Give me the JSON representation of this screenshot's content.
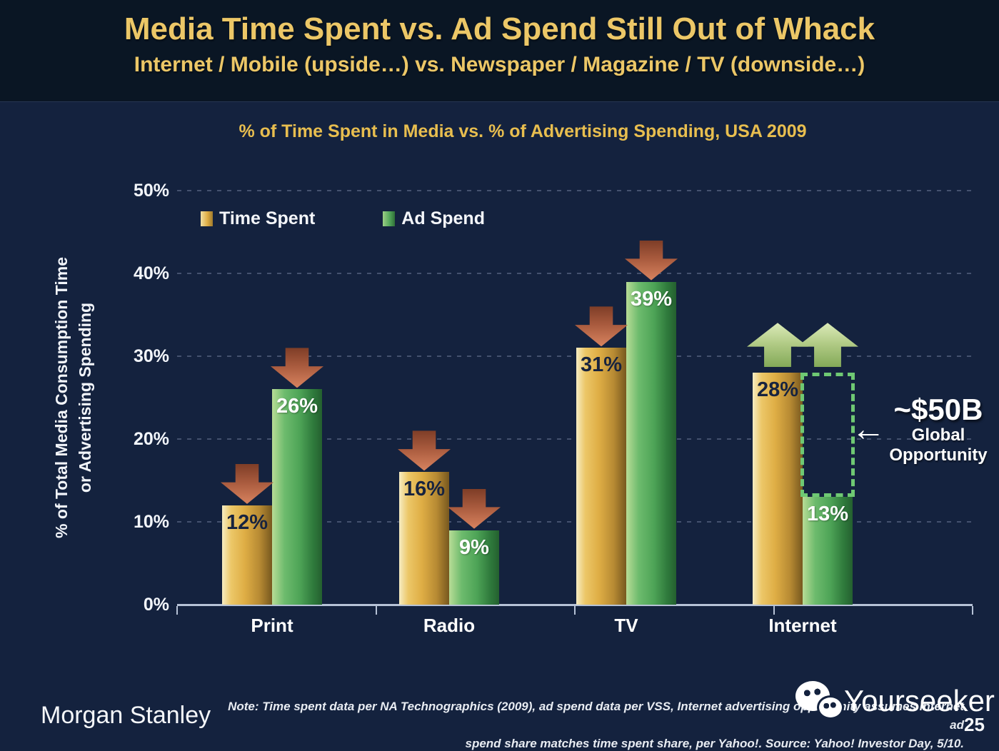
{
  "header": {
    "title": "Media Time Spent vs. Ad Spend Still Out of Whack",
    "subtitle": "Internet / Mobile (upside…) vs. Newspaper / Magazine / TV (downside…)"
  },
  "chart_data": {
    "type": "bar",
    "title": "% of Time Spent in Media vs. % of Advertising Spending, USA 2009",
    "ylabel_line1": "% of Total Media Consumption Time",
    "ylabel_line2": "or Advertising Spending",
    "categories": [
      "Print",
      "Radio",
      "TV",
      "Internet"
    ],
    "series": [
      {
        "name": "Time Spent",
        "color": "#DFAE45",
        "values": [
          12,
          16,
          31,
          28
        ]
      },
      {
        "name": "Ad Spend",
        "color": "#55A85C",
        "values": [
          26,
          9,
          39,
          13
        ]
      }
    ],
    "value_suffix": "%",
    "ylim": [
      0,
      50
    ],
    "ytick_step": 10,
    "yticks": [
      "0%",
      "10%",
      "20%",
      "30%",
      "40%",
      "50%"
    ],
    "grid": true,
    "legend_position": "inside-top-left",
    "arrows": [
      [
        "down",
        "down"
      ],
      [
        "down",
        "down"
      ],
      [
        "down",
        "down"
      ],
      [
        "up",
        "up"
      ]
    ],
    "annotation": {
      "label": "~$50B",
      "sub1": "Global",
      "sub2": "Opportunity",
      "category": "Internet",
      "box_from": 13,
      "box_to": 28
    }
  },
  "icons": {
    "left_arrow": "←"
  },
  "footer": {
    "brand": "Morgan Stanley",
    "note_line1": "Note: Time spent data per NA Technographics (2009), ad spend data per VSS, Internet advertising opportunity assumes Internet ad",
    "note_line2": "spend share matches time spent share, per Yahoo!. Source: Yahoo! Investor Day, 5/10.",
    "page_number": "25"
  },
  "watermark": {
    "text": "Yourseeker",
    "icon": "wechat-icon"
  }
}
